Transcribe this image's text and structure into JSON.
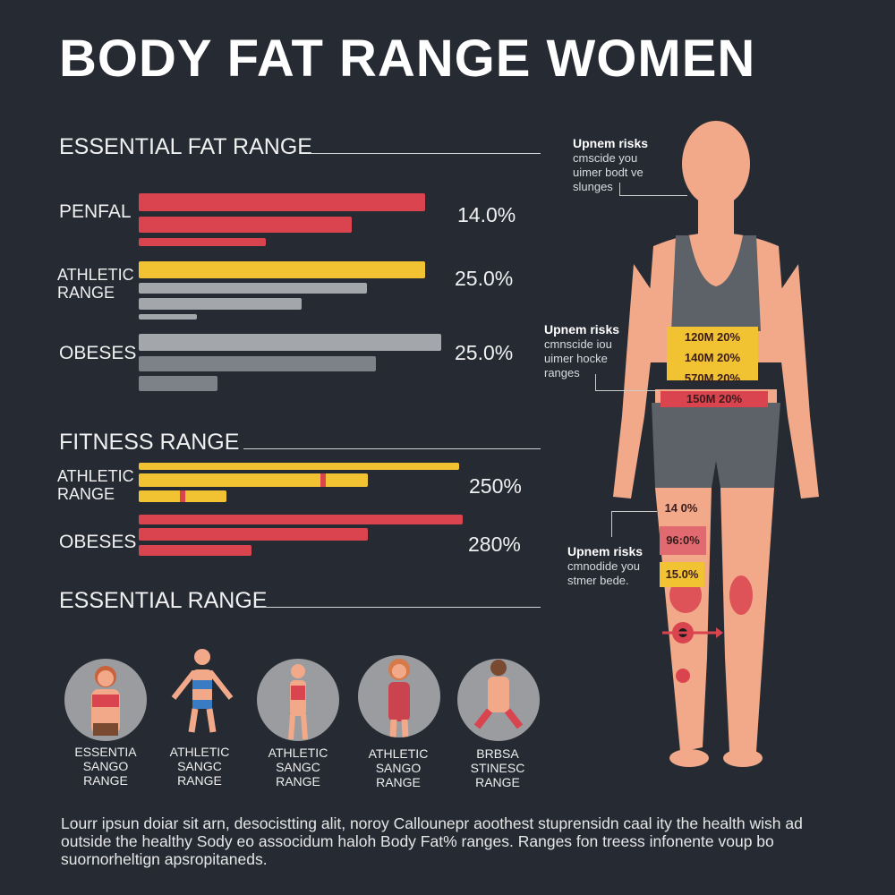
{
  "title": "BODY FAT RANGE WOMEN",
  "sections": {
    "essential_fat": {
      "heading": "ESSENTIAL FAT RANGE",
      "groups": [
        {
          "label": "PENFAL",
          "value": "14.0%",
          "color": "#d9444f"
        },
        {
          "label": "ATHLETIC\nRANGE",
          "value": "25.0%",
          "color": "#f1c232"
        },
        {
          "label": "OBESES",
          "value": "25.0%",
          "color": "#a3a6ab"
        }
      ]
    },
    "fitness": {
      "heading": "FITNESS RANGE",
      "groups": [
        {
          "label": "ATHLETIC\nRANGE",
          "value": "250%",
          "color": "#f1c232"
        },
        {
          "label": "OBESES",
          "value": "280%",
          "color": "#d9444f"
        }
      ]
    },
    "essential": {
      "heading": "ESSENTIAL RANGE"
    }
  },
  "figures": [
    {
      "label": "ESSENTIA\nSANGO\nRANGE"
    },
    {
      "label": "ATHLETIC\nSANGC\nRANGE"
    },
    {
      "label": "ATHLETIC\nSANGC\nRANGE"
    },
    {
      "label": "ATHLETIC\nSANGO\nRANGE"
    },
    {
      "label": "BRBSA\nSTINESC\nRANGE"
    }
  ],
  "callouts": [
    {
      "title": "Upnem risks",
      "body": "cmscide you\nuimer bodt ve\nslunges"
    },
    {
      "title": "Upnem risks",
      "body": "cmnscide iou\nuimer hocke\nranges"
    },
    {
      "title": "Upnem risks",
      "body": "cmnodide you\nstmer bede."
    }
  ],
  "waist_bands": [
    "120M 20%",
    "140M 20%",
    "570M 20%",
    "150M 20%"
  ],
  "leg_bands": [
    "14 0%",
    "96:0%",
    "15.0%"
  ],
  "footer": "Lourr ipsun doiar sit arn, desocistting alit, noroy Callounepr aoothest stuprensidn caal ity the health wish ad outside the healthy Sody eo associdum haloh Body Fat% ranges. Ranges fon treess infonente voup bo suornorheltign apsropitaneds.",
  "colors": {
    "background": "#262b33",
    "red": "#d9444f",
    "yellow": "#f1c232",
    "gray": "#a3a6ab",
    "skin": "#f2a98a",
    "clothing": "#5d6168"
  }
}
